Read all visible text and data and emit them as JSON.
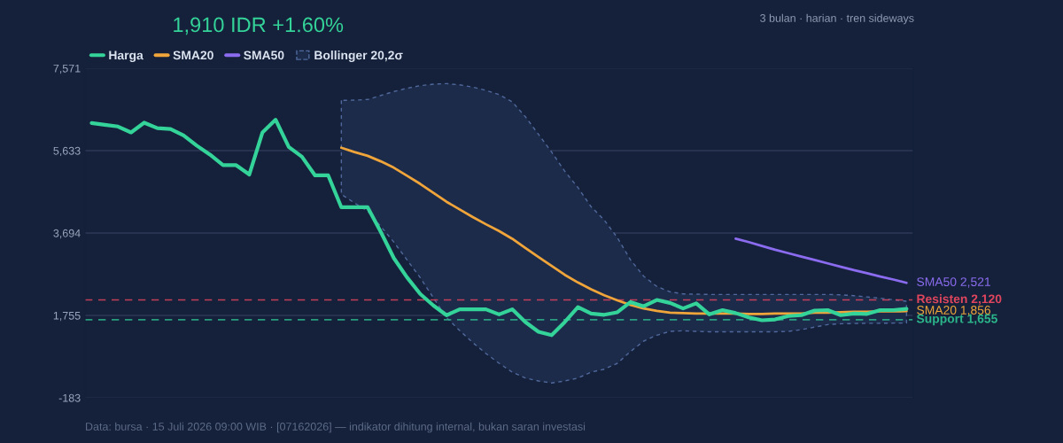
{
  "chart_data": {
    "type": "line",
    "title": "1,910 IDR +1.60%",
    "subtitle": "3 bulan · harian · tren sideways",
    "annotations": [
      "Data: bursa · 15 Juli 2026 09:00 WIB · [07162026] — indikator dihitung internal, bukan saran investasi"
    ],
    "categories": [
      null,
      null,
      null,
      null,
      null,
      null,
      null,
      null,
      null,
      null,
      null,
      null,
      null,
      null,
      null,
      null,
      null,
      null,
      null,
      null,
      null,
      null,
      null,
      null,
      null,
      null,
      null,
      null,
      null,
      null,
      null,
      null,
      null,
      null,
      null,
      null,
      null,
      null,
      null,
      null,
      null,
      null,
      null,
      null,
      null,
      null,
      null,
      null,
      null,
      null,
      null,
      null,
      null,
      null,
      null,
      null,
      null,
      null,
      null,
      null,
      null,
      null,
      null
    ],
    "series": [
      {
        "name": "Harga",
        "color": "#34d399",
        "values": [
          6280,
          6240,
          6200,
          6060,
          6290,
          6160,
          6140,
          5990,
          5750,
          5540,
          5290,
          5290,
          5070,
          6060,
          6360,
          5720,
          5490,
          5050,
          5050,
          4300,
          4300,
          4300,
          3720,
          3100,
          2650,
          2260,
          1990,
          1760,
          1900,
          1900,
          1900,
          1780,
          1900,
          1600,
          1370,
          1290,
          1600,
          1950,
          1800,
          1770,
          1830,
          2070,
          1970,
          2120,
          2050,
          1920,
          2040,
          1780,
          1880,
          1810,
          1710,
          1640,
          1660,
          1740,
          1760,
          1870,
          1880,
          1760,
          1800,
          1790,
          1880,
          1880,
          1910
        ]
      },
      {
        "name": "SMA20",
        "color": "#f0a53a",
        "values": [
          null,
          null,
          null,
          null,
          null,
          null,
          null,
          null,
          null,
          null,
          null,
          null,
          null,
          null,
          null,
          null,
          null,
          null,
          null,
          5700,
          5600,
          5510,
          5380,
          5230,
          5040,
          4850,
          4640,
          4430,
          4250,
          4070,
          3900,
          3740,
          3560,
          3340,
          3130,
          2920,
          2710,
          2530,
          2370,
          2230,
          2110,
          2000,
          1920,
          1860,
          1820,
          1810,
          1800,
          1800,
          1800,
          1800,
          1790,
          1790,
          1800,
          1800,
          1800,
          1820,
          1820,
          1830,
          1840,
          1840,
          1850,
          1850,
          1856
        ],
        "lower": [
          null,
          null,
          null,
          null,
          null,
          null,
          null,
          null,
          null,
          null,
          null,
          null,
          null,
          null,
          null,
          null,
          null,
          null,
          null,
          4604,
          4400,
          4208,
          3850,
          3478,
          3060,
          2645,
          2170,
          1707,
          1400,
          1116,
          860,
          630,
          421,
          282,
          213,
          165,
          213,
          282,
          421,
          490,
          630,
          907,
          1151,
          1290,
          1380,
          1394,
          1380,
          1370,
          1370,
          1370,
          1370,
          1370,
          1370,
          1380,
          1420,
          1480,
          1540,
          1560,
          1565,
          1570,
          1572,
          1575,
          1577
        ],
        "upper": [
          null,
          null,
          null,
          null,
          null,
          null,
          null,
          null,
          null,
          null,
          null,
          null,
          null,
          null,
          null,
          null,
          null,
          null,
          null,
          6814,
          6820,
          6835,
          6930,
          7023,
          7100,
          7161,
          7195,
          7210,
          7180,
          7127,
          7050,
          6952,
          6779,
          6431,
          6014,
          5597,
          5147,
          4764,
          4313,
          4000,
          3583,
          3062,
          2679,
          2437,
          2312,
          2262,
          2255,
          2249,
          2249,
          2249,
          2249,
          2249,
          2249,
          2249,
          2249,
          2249,
          2249,
          2240,
          2220,
          2190,
          2160,
          2125,
          2089
        ],
        "value_labels": [
          null,
          null,
          null,
          null,
          null,
          null,
          null,
          null,
          null,
          null,
          null,
          null,
          null,
          null,
          null,
          null,
          null,
          null,
          null,
          null,
          null,
          null,
          null,
          null,
          null,
          null,
          null,
          null,
          null,
          null,
          null,
          null,
          null,
          null,
          null,
          null,
          null,
          null,
          null,
          null,
          null,
          null,
          null,
          null,
          null,
          null,
          null,
          null,
          null,
          null,
          null,
          null,
          null,
          null,
          null,
          null,
          null,
          null,
          null,
          null,
          null,
          null,
          "SMA20 1,856"
        ]
      },
      {
        "name": "SMA50",
        "color": "#8b6cf0",
        "values": [
          null,
          null,
          null,
          null,
          null,
          null,
          null,
          null,
          null,
          null,
          null,
          null,
          null,
          null,
          null,
          null,
          null,
          null,
          null,
          null,
          null,
          null,
          null,
          null,
          null,
          null,
          null,
          null,
          null,
          null,
          null,
          null,
          null,
          null,
          null,
          null,
          null,
          null,
          null,
          null,
          null,
          null,
          null,
          null,
          null,
          null,
          null,
          null,
          null,
          3560,
          3480,
          3390,
          3300,
          3220,
          3140,
          3060,
          2980,
          2900,
          2820,
          2750,
          2670,
          2600,
          2521
        ],
        "value_labels": [
          null,
          null,
          null,
          null,
          null,
          null,
          null,
          null,
          null,
          null,
          null,
          null,
          null,
          null,
          null,
          null,
          null,
          null,
          null,
          null,
          null,
          null,
          null,
          null,
          null,
          null,
          null,
          null,
          null,
          null,
          null,
          null,
          null,
          null,
          null,
          null,
          null,
          null,
          null,
          null,
          null,
          null,
          null,
          null,
          null,
          null,
          null,
          null,
          null,
          null,
          null,
          null,
          null,
          null,
          null,
          null,
          null,
          null,
          null,
          null,
          null,
          null,
          "SMA50 2,521"
        ]
      }
    ],
    "ref_lines": [
      {
        "axis": "y",
        "value": 2120,
        "label": "Resisten 2,120",
        "color": "#e0455e",
        "line_style": "dashed"
      },
      {
        "axis": "y",
        "value": 1655,
        "label": "Support 1,655",
        "color": "#2bb38a",
        "line_style": "dashed"
      }
    ],
    "legend_title": "Bollinger 20,2σ",
    "ylim": [
      -183,
      7571
    ],
    "yticks": [
      {
        "value": -183,
        "label": "-183"
      },
      {
        "value": 1755,
        "label": "1,755"
      },
      {
        "value": 3694,
        "label": "3,694"
      },
      {
        "value": 5633,
        "label": "5,633"
      },
      {
        "value": 7571,
        "label": "7,571"
      }
    ],
    "tick_labels": "y",
    "grid": "y",
    "legend": "top left"
  }
}
